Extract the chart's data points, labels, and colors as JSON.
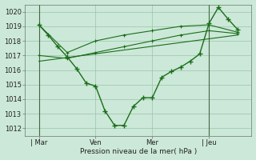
{
  "background_color": "#cce8d8",
  "grid_color": "#99c4aa",
  "line_color": "#1a6e1a",
  "xlabel": "Pression niveau de la mer( hPa )",
  "ylim": [
    1011.5,
    1020.5
  ],
  "yticks": [
    1012,
    1013,
    1014,
    1015,
    1016,
    1017,
    1018,
    1019,
    1020
  ],
  "xtick_labels": [
    "| Mar",
    "Ven",
    "Mer",
    "| Jeu"
  ],
  "xtick_positions": [
    0,
    2,
    4,
    6
  ],
  "xlim": [
    -0.5,
    7.5
  ],
  "vlines_x": [
    0,
    6
  ],
  "main_line_x": [
    0,
    0.33,
    0.67,
    1.0,
    1.33,
    1.67,
    2.0,
    2.33,
    2.67,
    3.0,
    3.33,
    3.67,
    4.0,
    4.33,
    4.67,
    5.0,
    5.33,
    5.67,
    6.0,
    6.33,
    6.67,
    7.0
  ],
  "main_line_y": [
    1019.1,
    1018.4,
    1017.6,
    1016.9,
    1016.1,
    1015.1,
    1014.9,
    1013.2,
    1012.2,
    1012.2,
    1013.5,
    1014.1,
    1014.1,
    1015.5,
    1015.9,
    1016.2,
    1016.6,
    1017.1,
    1019.2,
    1020.3,
    1019.5,
    1018.8
  ],
  "upper_band_x": [
    0,
    1,
    2,
    3,
    4,
    5,
    6,
    7
  ],
  "upper_band_y": [
    1019.1,
    1017.2,
    1018.0,
    1018.4,
    1018.7,
    1019.0,
    1019.1,
    1018.6
  ],
  "lower_band_x": [
    0,
    1,
    2,
    3,
    4,
    5,
    6,
    7
  ],
  "lower_band_y": [
    1017.0,
    1016.8,
    1017.2,
    1017.6,
    1018.0,
    1018.4,
    1018.7,
    1018.5
  ],
  "trend_line_x": [
    0,
    7
  ],
  "trend_line_y": [
    1016.6,
    1018.4
  ],
  "figsize": [
    3.2,
    2.0
  ],
  "dpi": 100
}
